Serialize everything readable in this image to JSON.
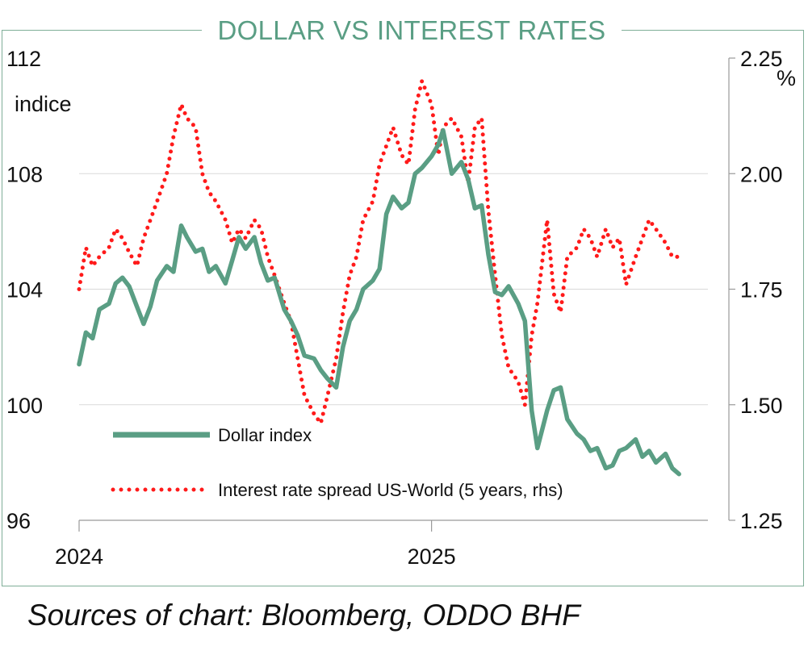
{
  "chart_data": {
    "type": "line",
    "title": "DOLLAR VS INTEREST RATES",
    "ylabel": "indice",
    "y2label": "%",
    "ylim": [
      96,
      112
    ],
    "y2lim": [
      1.25,
      2.25
    ],
    "y_ticks": [
      "112",
      "108",
      "104",
      "100",
      "96"
    ],
    "y2_ticks": [
      "2.25",
      "2.00",
      "1.75",
      "1.50",
      "1.25"
    ],
    "x_ticks": [
      "2024",
      "2025"
    ],
    "xlim": [
      "2024-01-01",
      "2025-10-15"
    ],
    "grid": true,
    "legend_position": "bottom-left inside",
    "series": [
      {
        "name": "Dollar index",
        "axis": "left",
        "color": "#5a9e84",
        "style": "solid",
        "x": [
          "2024-01-01",
          "2024-01-08",
          "2024-01-15",
          "2024-01-22",
          "2024-02-01",
          "2024-02-08",
          "2024-02-15",
          "2024-02-22",
          "2024-03-01",
          "2024-03-08",
          "2024-03-15",
          "2024-03-22",
          "2024-04-01",
          "2024-04-08",
          "2024-04-16",
          "2024-04-22",
          "2024-05-01",
          "2024-05-08",
          "2024-05-15",
          "2024-05-22",
          "2024-06-01",
          "2024-06-08",
          "2024-06-15",
          "2024-06-22",
          "2024-07-01",
          "2024-07-08",
          "2024-07-15",
          "2024-07-22",
          "2024-08-01",
          "2024-08-08",
          "2024-08-15",
          "2024-08-22",
          "2024-09-01",
          "2024-09-08",
          "2024-09-15",
          "2024-09-24",
          "2024-10-01",
          "2024-10-08",
          "2024-10-15",
          "2024-10-22",
          "2024-11-01",
          "2024-11-08",
          "2024-11-15",
          "2024-11-22",
          "2024-12-01",
          "2024-12-08",
          "2024-12-15",
          "2024-12-22",
          "2025-01-01",
          "2025-01-08",
          "2025-01-13",
          "2025-01-22",
          "2025-02-01",
          "2025-02-08",
          "2025-02-15",
          "2025-02-22",
          "2025-03-01",
          "2025-03-08",
          "2025-03-15",
          "2025-03-22",
          "2025-04-01",
          "2025-04-08",
          "2025-04-15",
          "2025-04-21",
          "2025-05-01",
          "2025-05-08",
          "2025-05-15",
          "2025-05-22",
          "2025-06-01",
          "2025-06-08",
          "2025-06-15",
          "2025-06-22",
          "2025-07-01",
          "2025-07-08",
          "2025-07-15",
          "2025-07-22",
          "2025-08-01",
          "2025-08-08",
          "2025-08-15",
          "2025-08-22",
          "2025-09-01",
          "2025-09-08",
          "2025-09-15"
        ],
        "values": [
          101.4,
          102.5,
          102.3,
          103.3,
          103.5,
          104.2,
          104.4,
          104.1,
          103.4,
          102.8,
          103.4,
          104.3,
          104.8,
          104.6,
          106.2,
          105.8,
          105.3,
          105.4,
          104.6,
          104.8,
          104.2,
          105.0,
          105.8,
          105.4,
          105.8,
          104.9,
          104.3,
          104.4,
          103.3,
          102.9,
          102.4,
          101.7,
          101.6,
          101.2,
          100.9,
          100.6,
          102.0,
          102.9,
          103.3,
          104.0,
          104.3,
          104.7,
          106.6,
          107.2,
          106.8,
          107.0,
          108.0,
          108.2,
          108.6,
          109.0,
          109.5,
          108.0,
          108.4,
          107.8,
          106.8,
          106.9,
          105.2,
          103.9,
          103.8,
          104.1,
          103.5,
          102.9,
          99.8,
          98.5,
          99.8,
          100.5,
          100.6,
          99.5,
          99.0,
          98.8,
          98.4,
          98.5,
          97.8,
          97.9,
          98.4,
          98.5,
          98.8,
          98.2,
          98.4,
          98.0,
          98.3,
          97.8,
          97.6
        ]
      },
      {
        "name": "Interest rate spread US-World (5 years, rhs)",
        "axis": "right",
        "color": "#ff1a1a",
        "style": "dotted",
        "x": [
          "2024-01-01",
          "2024-01-08",
          "2024-01-15",
          "2024-01-22",
          "2024-02-01",
          "2024-02-08",
          "2024-02-15",
          "2024-02-22",
          "2024-03-01",
          "2024-03-08",
          "2024-03-15",
          "2024-03-22",
          "2024-04-01",
          "2024-04-08",
          "2024-04-16",
          "2024-04-22",
          "2024-05-01",
          "2024-05-08",
          "2024-05-15",
          "2024-05-22",
          "2024-06-01",
          "2024-06-08",
          "2024-06-15",
          "2024-06-22",
          "2024-07-01",
          "2024-07-08",
          "2024-07-15",
          "2024-07-22",
          "2024-08-01",
          "2024-08-08",
          "2024-08-15",
          "2024-08-22",
          "2024-09-01",
          "2024-09-08",
          "2024-09-15",
          "2024-09-24",
          "2024-10-01",
          "2024-10-08",
          "2024-10-15",
          "2024-10-22",
          "2024-11-01",
          "2024-11-08",
          "2024-11-15",
          "2024-11-22",
          "2024-12-01",
          "2024-12-08",
          "2024-12-15",
          "2024-12-22",
          "2025-01-01",
          "2025-01-08",
          "2025-01-13",
          "2025-01-22",
          "2025-02-01",
          "2025-02-08",
          "2025-02-15",
          "2025-02-22",
          "2025-03-01",
          "2025-03-08",
          "2025-03-15",
          "2025-03-22",
          "2025-04-01",
          "2025-04-08",
          "2025-04-15",
          "2025-04-21",
          "2025-05-01",
          "2025-05-08",
          "2025-05-15",
          "2025-05-22",
          "2025-06-01",
          "2025-06-08",
          "2025-06-15",
          "2025-06-22",
          "2025-07-01",
          "2025-07-08",
          "2025-07-15",
          "2025-07-22",
          "2025-08-01",
          "2025-08-08",
          "2025-08-15",
          "2025-08-22",
          "2025-09-01",
          "2025-09-08",
          "2025-09-15"
        ],
        "values": [
          1.75,
          1.84,
          1.8,
          1.82,
          1.84,
          1.88,
          1.86,
          1.83,
          1.8,
          1.86,
          1.9,
          1.94,
          2.0,
          2.08,
          2.15,
          2.12,
          2.1,
          2.0,
          1.96,
          1.94,
          1.9,
          1.85,
          1.88,
          1.86,
          1.9,
          1.88,
          1.82,
          1.78,
          1.72,
          1.68,
          1.6,
          1.52,
          1.48,
          1.46,
          1.52,
          1.6,
          1.7,
          1.78,
          1.82,
          1.9,
          1.94,
          2.02,
          2.06,
          2.1,
          2.04,
          2.02,
          2.14,
          2.2,
          2.15,
          2.04,
          2.1,
          2.12,
          2.08,
          1.98,
          2.1,
          2.12,
          1.92,
          1.78,
          1.65,
          1.58,
          1.55,
          1.5,
          1.65,
          1.72,
          1.9,
          1.74,
          1.7,
          1.82,
          1.84,
          1.88,
          1.86,
          1.82,
          1.88,
          1.84,
          1.86,
          1.76,
          1.82,
          1.86,
          1.9,
          1.88,
          1.85,
          1.82,
          1.82
        ]
      }
    ]
  },
  "legend": {
    "dollar": "Dollar index",
    "spread": "Interest rate spread US-World (5 years, rhs)"
  },
  "source": "Sources of chart: Bloomberg, ODDO BHF"
}
